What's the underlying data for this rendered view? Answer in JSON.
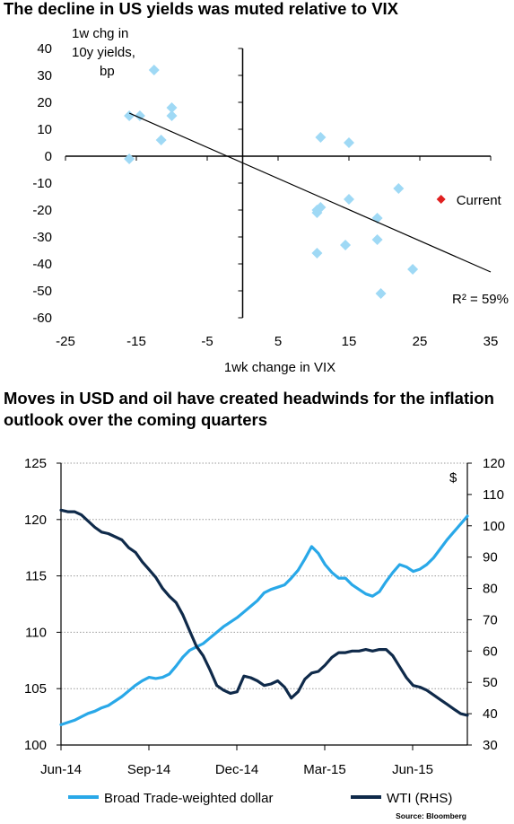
{
  "chart_data": [
    {
      "type": "scatter",
      "title": "The decline in US yields was muted relative to VIX",
      "xlabel": "1wk change in VIX",
      "ylabel_lines": [
        "1w chg in",
        "10y yields,",
        "bp"
      ],
      "xlim": [
        -25,
        35
      ],
      "ylim": [
        -60,
        40
      ],
      "x_ticks": [
        "-25",
        "-15",
        "-5",
        "5",
        "15",
        "25",
        "35"
      ],
      "y_ticks": [
        "40",
        "30",
        "20",
        "10",
        "0",
        "-10",
        "-20",
        "-30",
        "-40",
        "-50",
        "-60"
      ],
      "points": [
        {
          "x": -12.5,
          "y": 32
        },
        {
          "x": -10,
          "y": 18
        },
        {
          "x": -10,
          "y": 15
        },
        {
          "x": -14.5,
          "y": 15
        },
        {
          "x": -16,
          "y": 15
        },
        {
          "x": -11.5,
          "y": 6
        },
        {
          "x": -16,
          "y": -1
        },
        {
          "x": 11,
          "y": 7
        },
        {
          "x": 15,
          "y": 5
        },
        {
          "x": 22,
          "y": -12
        },
        {
          "x": 15,
          "y": -16
        },
        {
          "x": 11,
          "y": -19
        },
        {
          "x": 10.5,
          "y": -20
        },
        {
          "x": 10.5,
          "y": -21
        },
        {
          "x": 19,
          "y": -23
        },
        {
          "x": 19,
          "y": -31
        },
        {
          "x": 14.5,
          "y": -33
        },
        {
          "x": 10.5,
          "y": -36
        },
        {
          "x": 24,
          "y": -42
        },
        {
          "x": 19.5,
          "y": -51
        }
      ],
      "current_point": {
        "x": 28,
        "y": -16,
        "label": "Current",
        "color": "#e02020"
      },
      "trendline": {
        "x": [
          -16,
          35
        ],
        "y": [
          16,
          -43
        ]
      },
      "r2_label": "R² = 59%",
      "point_color": "#9fd9f5",
      "grid": false
    },
    {
      "type": "line",
      "title": "Moves in USD and oil have created headwinds for the inflation outlook over the coming quarters",
      "x_ticks": [
        "Jun-14",
        "Sep-14",
        "Dec-14",
        "Mar-15",
        "Jun-15"
      ],
      "y_left": {
        "ticks": [
          "125",
          "120",
          "115",
          "110",
          "105",
          "100"
        ],
        "lim": [
          100,
          125
        ]
      },
      "y_right": {
        "ticks": [
          "120",
          "110",
          "100",
          "90",
          "80",
          "70",
          "60",
          "50",
          "40",
          "30"
        ],
        "lim": [
          30,
          120
        ],
        "unit": "$"
      },
      "grid": true,
      "source": "Source: Bloomberg",
      "series": [
        {
          "name": "Broad Trade-weighted dollar",
          "axis": "left",
          "color": "#29a8e8",
          "values": [
            101.8,
            102.0,
            102.2,
            102.5,
            102.8,
            103.0,
            103.3,
            103.5,
            103.9,
            104.3,
            104.8,
            105.3,
            105.7,
            106.0,
            105.9,
            106.0,
            106.3,
            107.0,
            107.8,
            108.4,
            108.7,
            109.0,
            109.5,
            110.0,
            110.5,
            110.9,
            111.3,
            111.8,
            112.3,
            112.8,
            113.5,
            113.8,
            114.0,
            114.2,
            114.8,
            115.5,
            116.5,
            117.6,
            117.0,
            116.0,
            115.3,
            114.8,
            114.8,
            114.2,
            113.8,
            113.4,
            113.2,
            113.6,
            114.5,
            115.3,
            116.0,
            115.8,
            115.4,
            115.6,
            116.0,
            116.6,
            117.4,
            118.2,
            118.9,
            119.6,
            120.3
          ]
        },
        {
          "name": "WTI (RHS)",
          "axis": "right",
          "color": "#0f2a4a",
          "values": [
            105,
            104.5,
            104.5,
            103.5,
            101.5,
            99.5,
            98.0,
            97.5,
            96.5,
            95.5,
            93.0,
            91.5,
            88.5,
            86.0,
            83.5,
            80.0,
            77.5,
            75.5,
            71.5,
            66.5,
            61.5,
            58.5,
            54.0,
            49.0,
            47.5,
            46.5,
            47.0,
            52.0,
            51.5,
            50.5,
            49.0,
            49.5,
            50.5,
            48.5,
            45.0,
            47.0,
            51.0,
            53.0,
            53.5,
            55.5,
            58.0,
            59.5,
            59.5,
            60.0,
            60.0,
            60.5,
            60.0,
            60.5,
            60.5,
            58.5,
            55.0,
            51.5,
            49.0,
            48.5,
            47.5,
            46.0,
            44.5,
            43.0,
            41.5,
            40.0,
            39.5
          ]
        }
      ]
    }
  ]
}
